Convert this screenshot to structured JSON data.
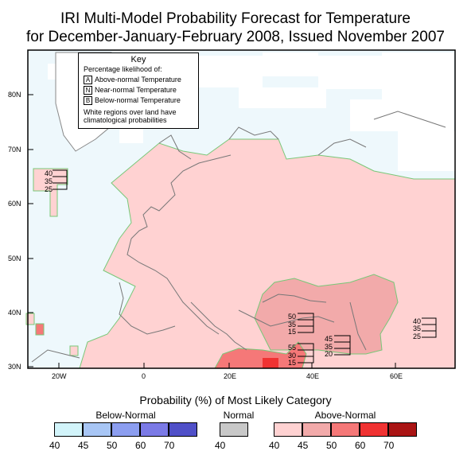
{
  "title_line1": "IRI Multi-Model Probability Forecast for Temperature",
  "title_line2": "for December-January-February 2008, Issued November 2007",
  "key": {
    "title": "Key",
    "subtitle": "Percentage likelihood of:",
    "rows": [
      {
        "letter": "A",
        "label": "Above-normal Temperature"
      },
      {
        "letter": "N",
        "label": "Near-normal Temperature"
      },
      {
        "letter": "B",
        "label": "Below-normal Temperature"
      }
    ],
    "note_line1": "White regions over land have",
    "note_line2": "climatological probabilities"
  },
  "axes": {
    "lat_labels": [
      "80N",
      "70N",
      "60N",
      "50N",
      "40N",
      "30N"
    ],
    "lon_labels": [
      "20W",
      "0",
      "20E",
      "40E",
      "60E"
    ]
  },
  "probability_boxes": [
    {
      "values": [
        "40",
        "35",
        "25"
      ]
    },
    {
      "values": [
        "50",
        "35",
        "15"
      ]
    },
    {
      "values": [
        "45",
        "35",
        "20"
      ]
    },
    {
      "values": [
        "55",
        "30",
        "15"
      ]
    },
    {
      "values": [
        "40",
        "35",
        "25"
      ]
    }
  ],
  "legend": {
    "title": "Probability (%) of Most Likely Category",
    "below": {
      "label": "Below-Normal",
      "ticks": [
        "40",
        "45",
        "50",
        "60",
        "70"
      ],
      "colors": [
        "#d2f4fa",
        "#a8c6f5",
        "#8c9ef0",
        "#7b7ae6",
        "#5050c8"
      ]
    },
    "normal": {
      "label": "Normal",
      "ticks": [
        "40"
      ],
      "colors": [
        "#c8c8c8"
      ]
    },
    "above": {
      "label": "Above-Normal",
      "ticks": [
        "40",
        "45",
        "50",
        "60",
        "70"
      ],
      "colors": [
        "#ffd2d2",
        "#f2aaaa",
        "#f57878",
        "#f03232",
        "#aa1414"
      ]
    }
  },
  "colors": {
    "ocean": "#eef8fc",
    "land_above40": "#ffd2d2",
    "land_above45": "#f2aaaa",
    "land_above50": "#f57878",
    "land_above60": "#f03232",
    "region_border": "#78c878"
  }
}
